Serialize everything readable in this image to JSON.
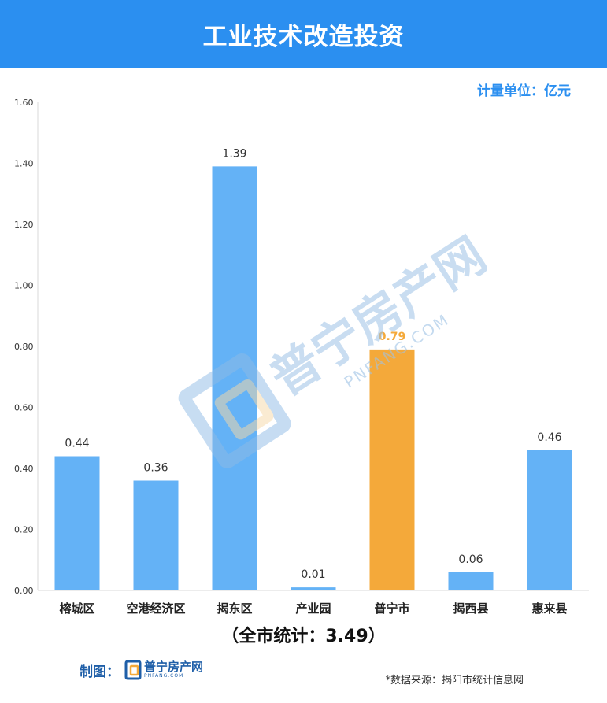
{
  "header": {
    "title": "工业技术改造投资"
  },
  "unit": "计量单位：亿元",
  "chart_data": {
    "type": "bar",
    "categories": [
      "榕城区",
      "空港经济区",
      "揭东区",
      "产业园",
      "普宁市",
      "揭西县",
      "惠来县"
    ],
    "values": [
      0.44,
      0.36,
      1.39,
      0.01,
      0.79,
      0.06,
      0.46
    ],
    "value_labels": [
      "0.44",
      "0.36",
      "1.39",
      "0.01",
      "0.79",
      "0.06",
      "0.46"
    ],
    "highlight_index": 4,
    "ylim": [
      0,
      1.6
    ],
    "yticks": [
      "0.00",
      "0.20",
      "0.40",
      "0.60",
      "0.80",
      "1.00",
      "1.20",
      "1.40",
      "1.60"
    ],
    "colors": {
      "bar": "#64b2f6",
      "highlight": "#f4a93a",
      "axis": "#d9d9d9"
    },
    "grid": false,
    "xlabel": "",
    "ylabel": ""
  },
  "total": "（全市统计：3.49）",
  "credit": {
    "label": "制图：",
    "logo_cn": "普宁房产网",
    "logo_en": "PNFANG.COM"
  },
  "source": "*数据来源：揭阳市统计信息网",
  "watermark": {
    "cn": "普宁房产网",
    "en": "PNFANG.COM"
  },
  "icons": {
    "logo": "pnfang-logo-icon"
  }
}
